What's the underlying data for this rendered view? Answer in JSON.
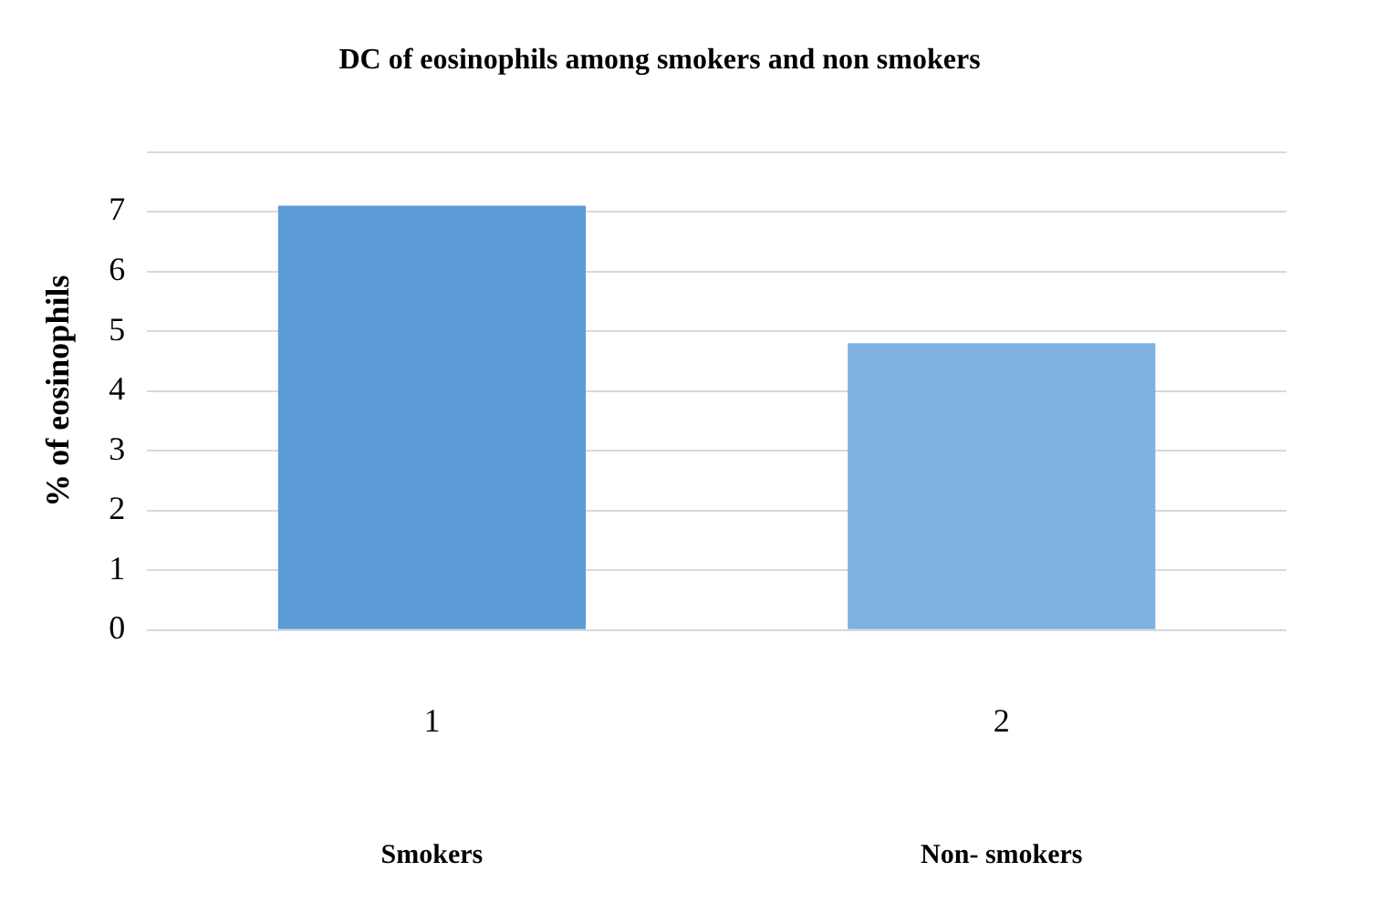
{
  "chart_data": {
    "type": "bar",
    "title": "DC of eosinophils among smokers and non smokers",
    "ylabel": "% of eosinophils",
    "categories": [
      "1",
      "2"
    ],
    "values": [
      7.1,
      4.8
    ],
    "colors": [
      "#5b9bd5",
      "#7fb2e0"
    ],
    "ylim": [
      0,
      8
    ],
    "yticks": [
      0,
      1,
      2,
      3,
      4,
      5,
      6,
      7
    ],
    "grid": "y",
    "annotations": [
      "Smokers",
      "Non- smokers"
    ]
  }
}
